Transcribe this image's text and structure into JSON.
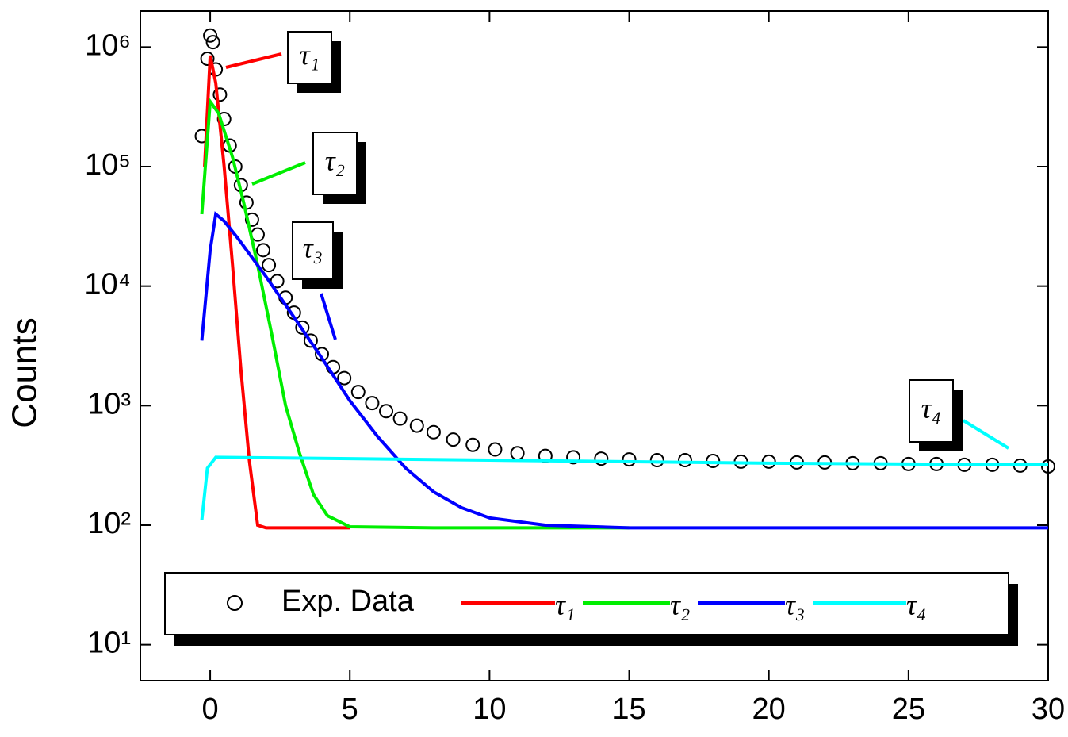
{
  "chart_data": {
    "type": "line",
    "y_label": "Counts",
    "log_y": true,
    "xlim": [
      -2.5,
      30
    ],
    "xticks": [
      0,
      5,
      10,
      15,
      20,
      25,
      30
    ],
    "ylim": [
      5,
      2000000
    ],
    "yticks": [
      {
        "value": 10,
        "label": "10¹"
      },
      {
        "value": 100,
        "label": "10²"
      },
      {
        "value": 1000,
        "label": "10³"
      },
      {
        "value": 10000,
        "label": "10⁴"
      },
      {
        "value": 100000,
        "label": "10⁵"
      },
      {
        "value": 1000000,
        "label": "10⁶"
      }
    ],
    "series": [
      {
        "name": "Exp. Data",
        "type": "scatter",
        "color": "#000000",
        "x": [
          -0.3,
          -0.1,
          0,
          0.1,
          0.2,
          0.35,
          0.5,
          0.7,
          0.9,
          1.1,
          1.3,
          1.5,
          1.7,
          1.9,
          2.1,
          2.4,
          2.7,
          3.0,
          3.3,
          3.6,
          4.0,
          4.4,
          4.8,
          5.3,
          5.8,
          6.3,
          6.8,
          7.4,
          8.0,
          8.7,
          9.4,
          10.2,
          11,
          12,
          13,
          14,
          15,
          16,
          17,
          18,
          19,
          20,
          21,
          22,
          23,
          24,
          25,
          26,
          27,
          28,
          29,
          30
        ],
        "values": [
          180000,
          800000,
          1250000,
          1100000,
          650000,
          400000,
          250000,
          150000,
          100000,
          70000,
          50000,
          36000,
          27000,
          20000,
          15000,
          11000,
          8000,
          6000,
          4500,
          3500,
          2700,
          2100,
          1700,
          1300,
          1050,
          900,
          780,
          680,
          600,
          520,
          470,
          430,
          400,
          380,
          370,
          360,
          355,
          350,
          350,
          345,
          340,
          340,
          335,
          335,
          330,
          330,
          325,
          325,
          320,
          320,
          315,
          310
        ]
      },
      {
        "name": "τ₁",
        "type": "line",
        "color": "#ff0000",
        "x": [
          -0.2,
          0,
          0.2,
          0.5,
          0.8,
          1.1,
          1.4,
          1.7,
          2,
          5
        ],
        "values": [
          100000,
          850000,
          500000,
          100000,
          15000,
          2000,
          350,
          100,
          95,
          95
        ]
      },
      {
        "name": "τ₂",
        "type": "line",
        "color": "#00ee00",
        "x": [
          -0.3,
          0,
          0.3,
          0.8,
          1.2,
          1.7,
          2.2,
          2.7,
          3.2,
          3.7,
          4.2,
          5,
          8,
          15
        ],
        "values": [
          40000,
          350000,
          280000,
          120000,
          50000,
          15000,
          4000,
          1000,
          400,
          180,
          120,
          97,
          95,
          95
        ]
      },
      {
        "name": "τ₃",
        "type": "line",
        "color": "#0000ff",
        "x": [
          -0.3,
          0,
          0.2,
          0.5,
          1,
          2,
          3,
          4,
          5,
          6,
          7,
          8,
          9,
          10,
          12,
          15,
          20,
          30
        ],
        "values": [
          3500,
          20000,
          40000,
          35000,
          25000,
          12000,
          5500,
          2500,
          1100,
          550,
          300,
          190,
          140,
          115,
          100,
          95,
          95,
          95
        ]
      },
      {
        "name": "τ₄",
        "type": "line",
        "color": "#00ffff",
        "x": [
          -0.3,
          -0.1,
          0.2,
          5,
          10,
          20,
          30
        ],
        "values": [
          110,
          300,
          370,
          360,
          350,
          330,
          320
        ]
      }
    ]
  }
}
